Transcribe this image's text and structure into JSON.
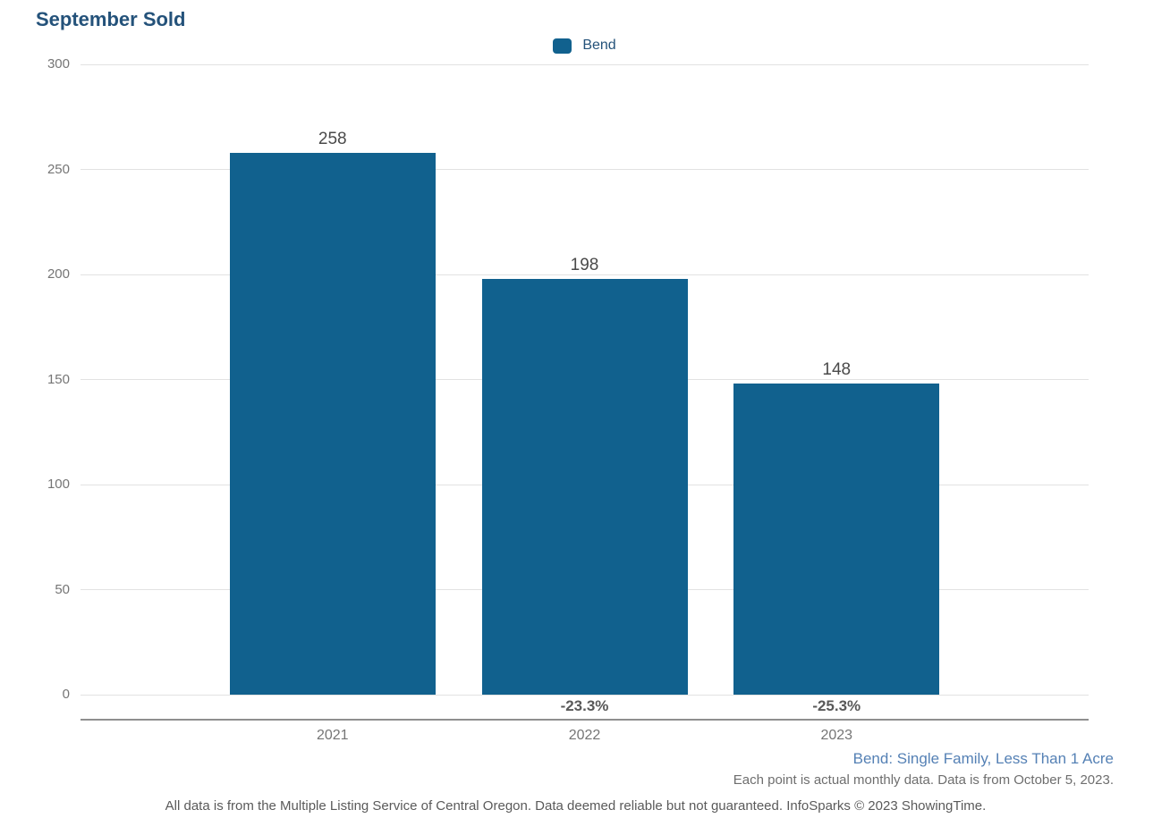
{
  "page": {
    "title": "September Sold",
    "background": "#ffffff"
  },
  "legend": {
    "items": [
      {
        "label": "Bend",
        "color": "#11618E"
      }
    ]
  },
  "chart_data": {
    "type": "bar",
    "title": "September Sold",
    "categories": [
      "2021",
      "2022",
      "2023"
    ],
    "series": [
      {
        "name": "Bend",
        "color": "#11618E",
        "values": [
          258,
          198,
          148
        ]
      }
    ],
    "bar_value_labels": [
      "258",
      "198",
      "148"
    ],
    "pct_change_labels": [
      null,
      "-23.3%",
      "-25.3%"
    ],
    "yticks": [
      300,
      250,
      200,
      150,
      100,
      50,
      0
    ],
    "ylim": [
      0,
      300
    ],
    "xlabel": "",
    "ylabel": "",
    "grid": true,
    "legend_position": "top-center"
  },
  "footnotes": {
    "series_description": "Bend: Single Family, Less Than 1 Acre",
    "data_note": "Each point is actual monthly data. Data is from October 5, 2023.",
    "disclaimer": "All data is from the Multiple Listing Service of Central Oregon. Data deemed reliable but not guaranteed. InfoSparks © 2023 ShowingTime."
  },
  "colors": {
    "bar": "#11618E",
    "title": "#24527A",
    "legend_label": "#24527A",
    "value_label": "#4A4A4A",
    "pct_label": "#595959",
    "tick_label": "#757575",
    "gridline": "#E2E2E2",
    "axis_line": "#8F8F8F",
    "series_footnote": "#5581B5",
    "note_gray": "#6E6E6E"
  }
}
